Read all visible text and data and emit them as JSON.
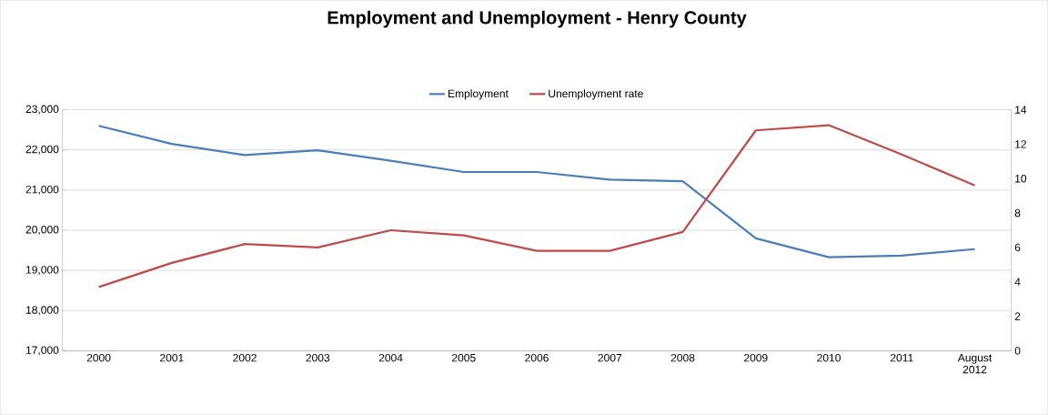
{
  "chart_data": {
    "type": "line",
    "title": "Employment and Unemployment - Henry County",
    "categories": [
      "2000",
      "2001",
      "2002",
      "2003",
      "2004",
      "2005",
      "2006",
      "2007",
      "2008",
      "2009",
      "2010",
      "2011",
      "August 2012"
    ],
    "series": [
      {
        "name": "Employment",
        "color": "#4a7ebb",
        "values": [
          22600,
          22150,
          21870,
          21990,
          21730,
          21450,
          21450,
          21260,
          21220,
          19800,
          19330,
          19370,
          19530
        ]
      },
      {
        "name": "Unemployment rate",
        "color": "#be4b48",
        "axis": "y2",
        "values": [
          3.7,
          5.1,
          6.2,
          6.0,
          7.0,
          6.7,
          5.8,
          5.8,
          6.9,
          12.8,
          13.1,
          11.4,
          9.6
        ]
      }
    ],
    "ylim": [
      17000,
      23000
    ],
    "yticks": [
      {
        "value": 17000,
        "label": "17,000"
      },
      {
        "value": 18000,
        "label": "18,000"
      },
      {
        "value": 19000,
        "label": "19,000"
      },
      {
        "value": 20000,
        "label": "20,000"
      },
      {
        "value": 21000,
        "label": "21,000"
      },
      {
        "value": 22000,
        "label": "22,000"
      },
      {
        "value": 23000,
        "label": "23,000"
      }
    ],
    "y2lim": [
      0,
      14
    ],
    "y2ticks": [
      0,
      2,
      4,
      6,
      8,
      10,
      12,
      14
    ],
    "grid": "y",
    "legend": "top",
    "marker": "none",
    "line_style": "solid"
  }
}
